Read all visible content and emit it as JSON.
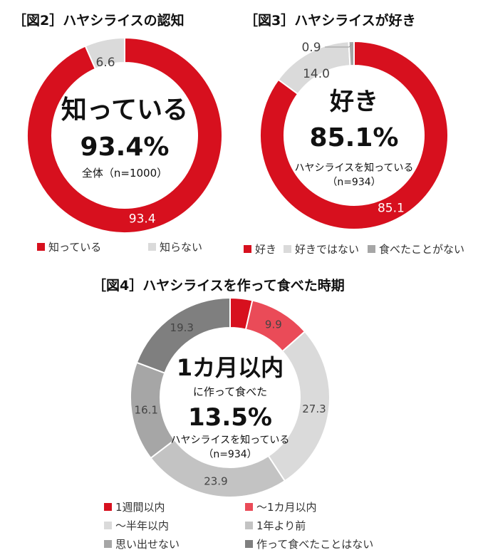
{
  "charts": [
    {
      "title": "［図2］ハヤシライスの認知",
      "center_heading": "知っている",
      "center_value": "93.4%",
      "center_note": "全体（n=1000）",
      "center_note2": "",
      "chart_data": {
        "type": "pie",
        "categories": [
          "知っている",
          "知らない"
        ],
        "values": [
          93.4,
          6.6
        ],
        "colors": [
          "#d7101e",
          "#dadada"
        ],
        "label_colors": [
          "#ffffff",
          "#444444"
        ]
      }
    },
    {
      "title": "［図3］ハヤシライスが好き",
      "center_heading": "好き",
      "center_value": "85.1%",
      "center_note": "ハヤシライスを知っている",
      "center_note2": "（n=934）",
      "chart_data": {
        "type": "pie",
        "categories": [
          "好き",
          "好きではない",
          "食べたことがない"
        ],
        "values": [
          85.1,
          14.0,
          0.9
        ],
        "colors": [
          "#d7101e",
          "#dadada",
          "#a6a6a6"
        ],
        "label_colors": [
          "#ffffff",
          "#444444",
          "#444444"
        ]
      }
    },
    {
      "title": "［図4］ハヤシライスを作って食べた時期",
      "center_heading": "1カ月以内",
      "center_sub": "に作って食べた",
      "center_value": "13.5%",
      "center_note": "ハヤシライスを知っている",
      "center_note2": "（n=934）",
      "chart_data": {
        "type": "pie",
        "categories": [
          "1週間以内",
          "～1カ月以内",
          "～半年以内",
          "1年より前",
          "思い出せない",
          "作って食べたことはない"
        ],
        "values": [
          3.6,
          9.9,
          27.3,
          23.9,
          16.1,
          19.3
        ],
        "colors": [
          "#d7101e",
          "#ea4b58",
          "#dadada",
          "#c3c3c3",
          "#a6a6a6",
          "#7f7f7f"
        ],
        "label_colors": [
          "#d7101e",
          "#444444",
          "#444444",
          "#444444",
          "#444444",
          "#444444"
        ]
      }
    }
  ]
}
